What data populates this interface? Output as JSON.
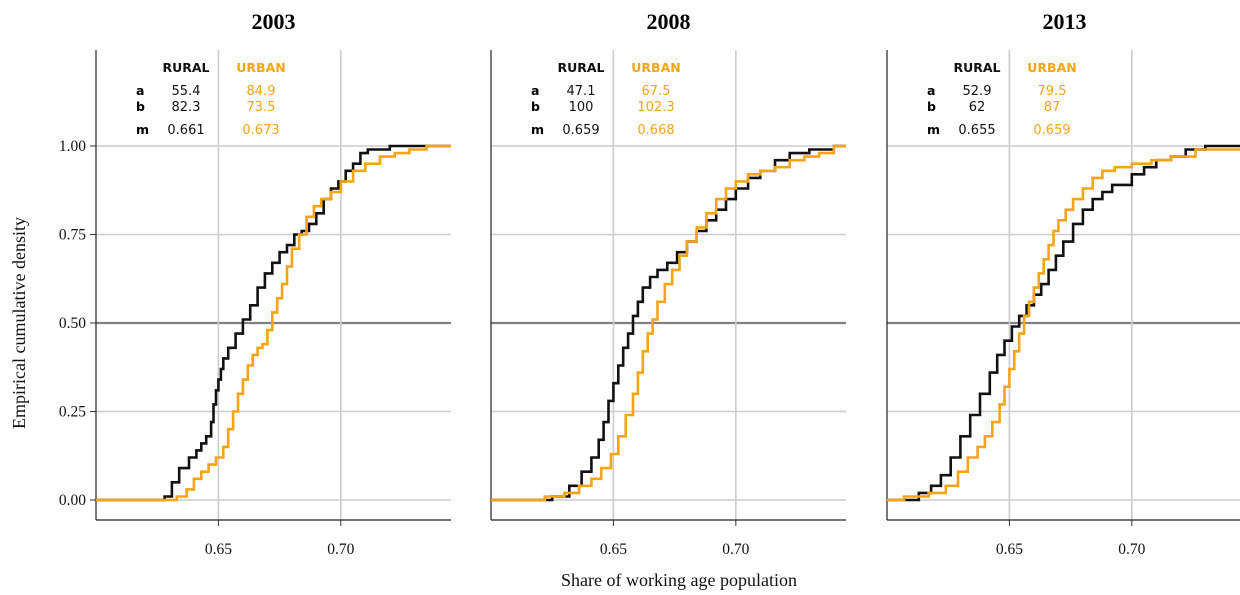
{
  "chart_data": {
    "type": "line",
    "ylabel": "Empirical cumulative density",
    "xlabel": "Share of working age population",
    "xlim": [
      0.6,
      0.745
    ],
    "ylim": [
      0,
      1.0
    ],
    "x_ticks": [
      "0.65",
      "0.70"
    ],
    "y_ticks": [
      "0.00",
      "0.25",
      "0.50",
      "0.75",
      "1.00"
    ],
    "reference_line_y": 0.5,
    "colors": {
      "rural": "#111111",
      "urban": "#f5a416",
      "grid": "#cccccc",
      "refline": "#808080"
    },
    "table_labels": {
      "rural": "RURAL",
      "urban": "URBAN",
      "rows": [
        "a",
        "b",
        "m"
      ]
    },
    "panels": [
      {
        "title": "2003",
        "table": {
          "rural": [
            "55.4",
            "82.3",
            "0.661"
          ],
          "urban": [
            "84.9",
            "73.5",
            "0.673"
          ]
        },
        "series": [
          {
            "name": "RURAL",
            "x": [
              0.6,
              0.62,
              0.628,
              0.631,
              0.634,
              0.638,
              0.641,
              0.643,
              0.645,
              0.647,
              0.648,
              0.649,
              0.65,
              0.651,
              0.652,
              0.654,
              0.657,
              0.66,
              0.663,
              0.666,
              0.669,
              0.672,
              0.675,
              0.678,
              0.681,
              0.684,
              0.687,
              0.69,
              0.693,
              0.696,
              0.699,
              0.702,
              0.705,
              0.708,
              0.711,
              0.72,
              0.745
            ],
            "y": [
              0.0,
              0.0,
              0.01,
              0.05,
              0.09,
              0.12,
              0.14,
              0.16,
              0.18,
              0.22,
              0.27,
              0.31,
              0.34,
              0.37,
              0.4,
              0.43,
              0.47,
              0.51,
              0.55,
              0.6,
              0.64,
              0.67,
              0.7,
              0.72,
              0.75,
              0.76,
              0.78,
              0.81,
              0.85,
              0.88,
              0.9,
              0.93,
              0.95,
              0.98,
              0.99,
              1.0,
              1.0
            ]
          },
          {
            "name": "URBAN",
            "x": [
              0.6,
              0.63,
              0.633,
              0.637,
              0.64,
              0.643,
              0.646,
              0.649,
              0.652,
              0.654,
              0.656,
              0.658,
              0.66,
              0.662,
              0.664,
              0.666,
              0.668,
              0.67,
              0.672,
              0.674,
              0.676,
              0.678,
              0.68,
              0.683,
              0.686,
              0.689,
              0.692,
              0.696,
              0.7,
              0.705,
              0.71,
              0.716,
              0.722,
              0.728,
              0.735,
              0.745
            ],
            "y": [
              0.0,
              0.0,
              0.01,
              0.03,
              0.06,
              0.08,
              0.1,
              0.12,
              0.15,
              0.2,
              0.25,
              0.3,
              0.34,
              0.38,
              0.41,
              0.43,
              0.44,
              0.48,
              0.53,
              0.57,
              0.61,
              0.66,
              0.71,
              0.75,
              0.8,
              0.83,
              0.85,
              0.87,
              0.9,
              0.93,
              0.95,
              0.97,
              0.98,
              0.99,
              1.0,
              1.0
            ]
          }
        ]
      },
      {
        "title": "2008",
        "table": {
          "rural": [
            "47.1",
            "100",
            "0.659"
          ],
          "urban": [
            "67.5",
            "102.3",
            "0.668"
          ]
        },
        "series": [
          {
            "name": "RURAL",
            "x": [
              0.6,
              0.614,
              0.625,
              0.632,
              0.637,
              0.641,
              0.644,
              0.646,
              0.648,
              0.65,
              0.652,
              0.654,
              0.656,
              0.658,
              0.66,
              0.662,
              0.665,
              0.668,
              0.672,
              0.676,
              0.68,
              0.684,
              0.688,
              0.692,
              0.696,
              0.7,
              0.705,
              0.71,
              0.716,
              0.722,
              0.73,
              0.74,
              0.745
            ],
            "y": [
              0.0,
              0.0,
              0.01,
              0.04,
              0.08,
              0.12,
              0.17,
              0.22,
              0.28,
              0.33,
              0.38,
              0.43,
              0.47,
              0.52,
              0.56,
              0.6,
              0.63,
              0.65,
              0.67,
              0.7,
              0.73,
              0.76,
              0.79,
              0.82,
              0.85,
              0.88,
              0.91,
              0.93,
              0.96,
              0.98,
              0.99,
              1.0,
              1.0
            ]
          },
          {
            "name": "URBAN",
            "x": [
              0.6,
              0.622,
              0.63,
              0.636,
              0.641,
              0.645,
              0.649,
              0.652,
              0.655,
              0.658,
              0.66,
              0.662,
              0.664,
              0.666,
              0.668,
              0.671,
              0.674,
              0.677,
              0.68,
              0.684,
              0.688,
              0.692,
              0.696,
              0.7,
              0.705,
              0.71,
              0.716,
              0.722,
              0.728,
              0.734,
              0.74,
              0.745
            ],
            "y": [
              0.0,
              0.01,
              0.02,
              0.04,
              0.06,
              0.09,
              0.13,
              0.18,
              0.24,
              0.3,
              0.36,
              0.42,
              0.47,
              0.51,
              0.56,
              0.61,
              0.65,
              0.69,
              0.73,
              0.77,
              0.81,
              0.85,
              0.88,
              0.9,
              0.92,
              0.93,
              0.94,
              0.96,
              0.97,
              0.98,
              1.0,
              1.0
            ]
          }
        ]
      },
      {
        "title": "2013",
        "table": {
          "rural": [
            "52.9",
            "62",
            "0.655"
          ],
          "urban": [
            "79.5",
            "87",
            "0.659"
          ]
        },
        "series": [
          {
            "name": "RURAL",
            "x": [
              0.6,
              0.607,
              0.613,
              0.618,
              0.622,
              0.626,
              0.63,
              0.634,
              0.638,
              0.642,
              0.645,
              0.648,
              0.651,
              0.654,
              0.657,
              0.66,
              0.663,
              0.666,
              0.669,
              0.672,
              0.676,
              0.68,
              0.684,
              0.688,
              0.692,
              0.696,
              0.7,
              0.705,
              0.71,
              0.716,
              0.722,
              0.73,
              0.745
            ],
            "y": [
              0.0,
              0.0,
              0.02,
              0.04,
              0.07,
              0.12,
              0.18,
              0.24,
              0.3,
              0.36,
              0.41,
              0.45,
              0.49,
              0.52,
              0.55,
              0.58,
              0.61,
              0.65,
              0.69,
              0.73,
              0.78,
              0.82,
              0.85,
              0.87,
              0.89,
              0.89,
              0.92,
              0.94,
              0.96,
              0.97,
              0.99,
              1.0,
              1.0
            ]
          },
          {
            "name": "URBAN",
            "x": [
              0.6,
              0.607,
              0.617,
              0.624,
              0.629,
              0.633,
              0.637,
              0.64,
              0.643,
              0.646,
              0.648,
              0.65,
              0.652,
              0.654,
              0.656,
              0.658,
              0.66,
              0.662,
              0.664,
              0.666,
              0.668,
              0.67,
              0.673,
              0.676,
              0.68,
              0.684,
              0.688,
              0.693,
              0.7,
              0.708,
              0.716,
              0.726,
              0.745
            ],
            "y": [
              0.0,
              0.01,
              0.02,
              0.04,
              0.08,
              0.12,
              0.15,
              0.18,
              0.22,
              0.27,
              0.32,
              0.37,
              0.42,
              0.47,
              0.52,
              0.56,
              0.6,
              0.64,
              0.68,
              0.72,
              0.76,
              0.79,
              0.82,
              0.85,
              0.88,
              0.91,
              0.93,
              0.94,
              0.95,
              0.96,
              0.97,
              0.99,
              1.0
            ]
          }
        ]
      }
    ]
  }
}
